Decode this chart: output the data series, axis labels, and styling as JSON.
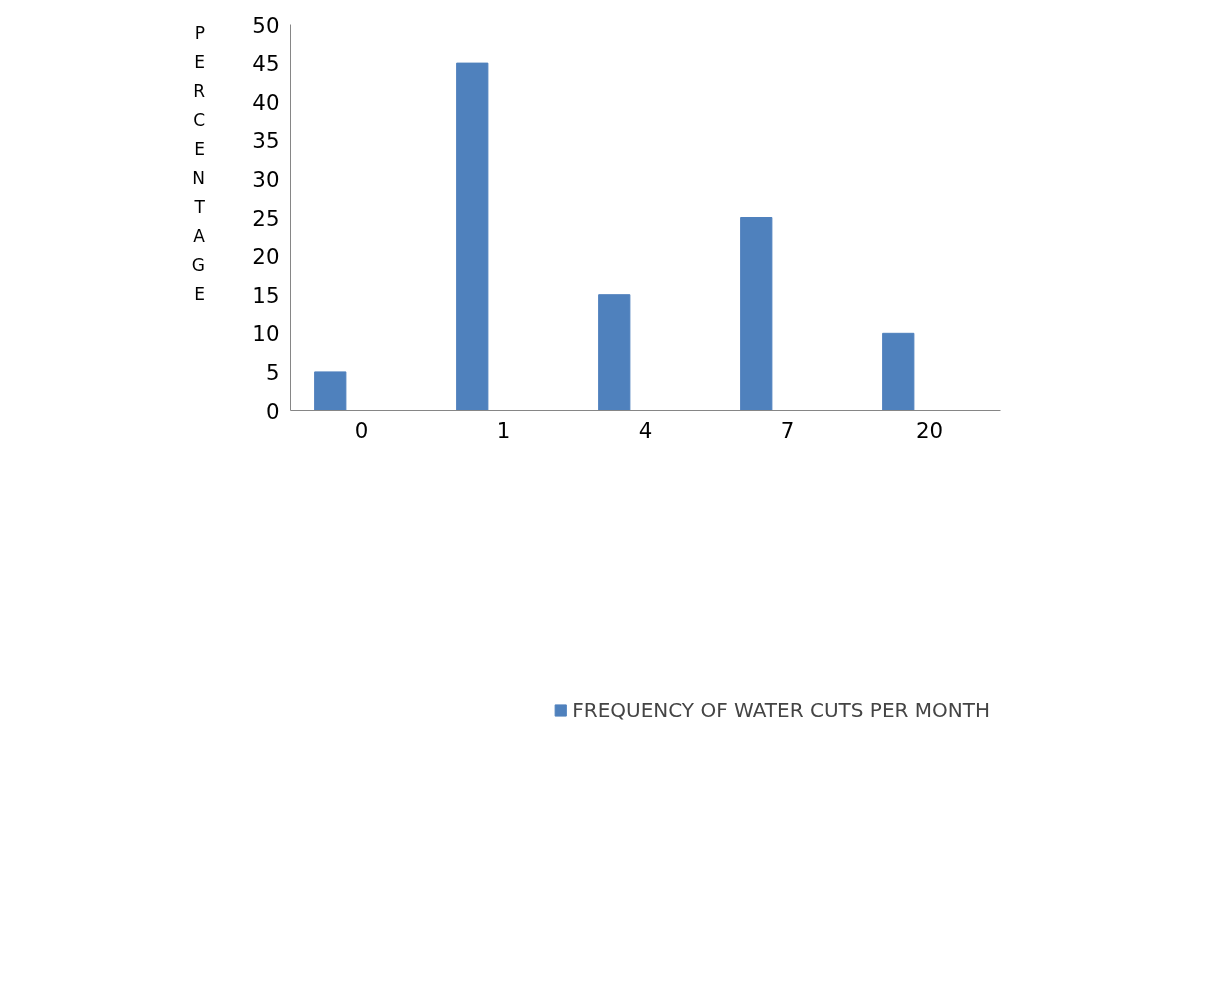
{
  "chart_data": {
    "type": "bar",
    "ylabel": "PERCENTAGE",
    "categories": [
      "0",
      "1",
      "4",
      "7",
      "20"
    ],
    "series": [
      {
        "name": "FREQUENCY OF WATER CUTS PER MONTH",
        "color": "#4f81bd",
        "values": [
          5,
          45,
          15,
          25,
          10
        ]
      }
    ],
    "ylim": [
      0,
      50
    ],
    "yticks": [
      0,
      5,
      10,
      15,
      20,
      25,
      30,
      35,
      40,
      45,
      50
    ],
    "grid": false,
    "legend": "bottom"
  }
}
